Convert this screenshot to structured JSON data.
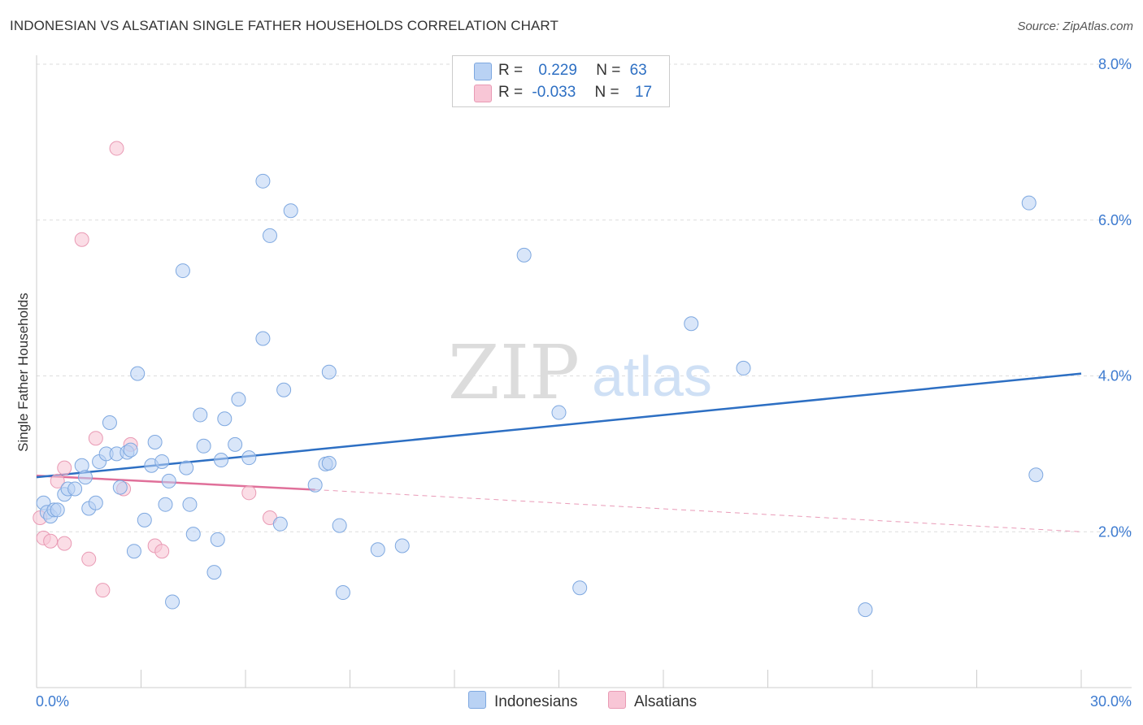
{
  "title": "INDONESIAN VS ALSATIAN SINGLE FATHER HOUSEHOLDS CORRELATION CHART",
  "source": "Source: ZipAtlas.com",
  "watermark": {
    "zip": "ZIP",
    "atlas": "atlas"
  },
  "colors": {
    "indonesian_fill": "#b9d2f4",
    "indonesian_stroke": "#7ea8e0",
    "indonesian_line": "#2d6fc3",
    "alsatian_fill": "#f8c6d6",
    "alsatian_stroke": "#e99ab4",
    "alsatian_line": "#e0709a",
    "tick_label": "#3d7bd0",
    "grid": "#dddddd"
  },
  "legend": {
    "rows": [
      {
        "r_label": "R =",
        "r_value": "0.229",
        "n_label": "N =",
        "n_value": "63"
      },
      {
        "r_label": "R =",
        "r_value": "-0.033",
        "n_label": "N =",
        "n_value": "17"
      }
    ]
  },
  "bottom_legend": [
    "Indonesians",
    "Alsatians"
  ],
  "chart_data": {
    "type": "scatter",
    "title": "INDONESIAN VS ALSATIAN SINGLE FATHER HOUSEHOLDS CORRELATION CHART",
    "xlabel": "",
    "ylabel": "Single Father Households",
    "xlim": [
      0,
      30
    ],
    "ylim": [
      0,
      8
    ],
    "x_tick_labels": [
      "0.0%",
      "30.0%"
    ],
    "y_ticks": [
      2,
      4,
      6,
      8
    ],
    "y_tick_labels": [
      "2.0%",
      "4.0%",
      "6.0%",
      "8.0%"
    ],
    "grid": "horizontal dashed",
    "series": [
      {
        "name": "Indonesians",
        "r": 0.229,
        "n": 63,
        "trend": {
          "x": [
            0,
            30
          ],
          "y": [
            2.7,
            4.03
          ]
        },
        "points": [
          [
            0.2,
            2.37
          ],
          [
            0.3,
            2.25
          ],
          [
            0.4,
            2.2
          ],
          [
            0.5,
            2.28
          ],
          [
            0.6,
            2.28
          ],
          [
            0.8,
            2.48
          ],
          [
            0.9,
            2.55
          ],
          [
            1.1,
            2.55
          ],
          [
            1.3,
            2.85
          ],
          [
            1.4,
            2.7
          ],
          [
            1.5,
            2.3
          ],
          [
            1.7,
            2.37
          ],
          [
            1.8,
            2.9
          ],
          [
            2.0,
            3.0
          ],
          [
            2.1,
            3.4
          ],
          [
            2.3,
            3.0
          ],
          [
            2.4,
            2.57
          ],
          [
            2.6,
            3.02
          ],
          [
            2.7,
            3.05
          ],
          [
            2.8,
            1.75
          ],
          [
            2.9,
            4.03
          ],
          [
            3.1,
            2.15
          ],
          [
            3.3,
            2.85
          ],
          [
            3.4,
            3.15
          ],
          [
            3.6,
            2.9
          ],
          [
            3.7,
            2.35
          ],
          [
            3.8,
            2.65
          ],
          [
            3.9,
            1.1
          ],
          [
            4.2,
            5.35
          ],
          [
            4.3,
            2.82
          ],
          [
            4.4,
            2.35
          ],
          [
            4.5,
            1.97
          ],
          [
            4.7,
            3.5
          ],
          [
            4.8,
            3.1
          ],
          [
            5.1,
            1.48
          ],
          [
            5.2,
            1.9
          ],
          [
            5.3,
            2.92
          ],
          [
            5.4,
            3.45
          ],
          [
            5.7,
            3.12
          ],
          [
            5.8,
            3.7
          ],
          [
            6.1,
            2.95
          ],
          [
            6.5,
            4.48
          ],
          [
            6.5,
            6.5
          ],
          [
            6.7,
            5.8
          ],
          [
            7.0,
            2.1
          ],
          [
            7.1,
            3.82
          ],
          [
            7.3,
            6.12
          ],
          [
            8.0,
            2.6
          ],
          [
            8.3,
            2.87
          ],
          [
            8.4,
            4.05
          ],
          [
            8.4,
            2.88
          ],
          [
            8.7,
            2.08
          ],
          [
            8.8,
            1.22
          ],
          [
            9.8,
            1.77
          ],
          [
            10.5,
            1.82
          ],
          [
            14.0,
            5.55
          ],
          [
            15.0,
            3.53
          ],
          [
            15.6,
            1.28
          ],
          [
            18.8,
            4.67
          ],
          [
            20.3,
            4.1
          ],
          [
            23.8,
            1.0
          ],
          [
            28.5,
            6.22
          ],
          [
            28.7,
            2.73
          ]
        ]
      },
      {
        "name": "Alsatians",
        "r": -0.033,
        "n": 17,
        "trend": {
          "x": [
            0,
            8
          ],
          "y": [
            2.72,
            2.54
          ]
        },
        "trend_extended": {
          "x": [
            8,
            30
          ],
          "y": [
            2.54,
            2.0
          ]
        },
        "points": [
          [
            0.1,
            2.18
          ],
          [
            0.2,
            1.92
          ],
          [
            0.4,
            1.88
          ],
          [
            0.6,
            2.65
          ],
          [
            0.8,
            1.85
          ],
          [
            0.8,
            2.82
          ],
          [
            1.3,
            5.75
          ],
          [
            1.5,
            1.65
          ],
          [
            1.7,
            3.2
          ],
          [
            1.9,
            1.25
          ],
          [
            2.3,
            6.92
          ],
          [
            2.5,
            2.55
          ],
          [
            2.7,
            3.12
          ],
          [
            3.4,
            1.82
          ],
          [
            3.6,
            1.75
          ],
          [
            6.1,
            2.5
          ],
          [
            6.7,
            2.18
          ]
        ]
      }
    ]
  }
}
